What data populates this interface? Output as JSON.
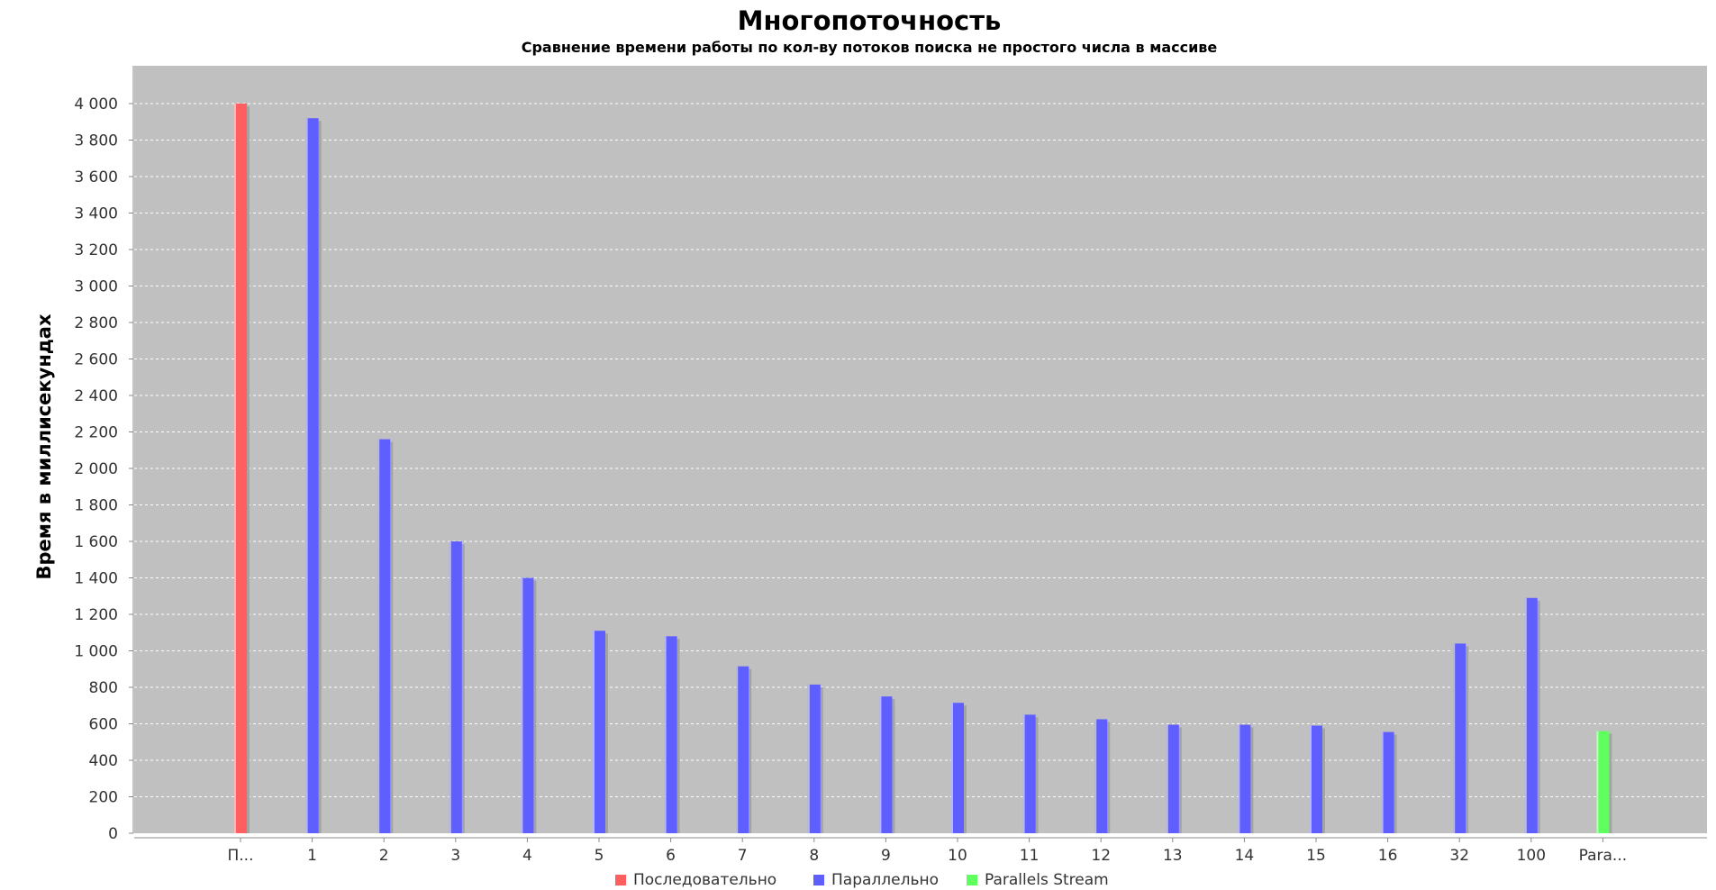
{
  "chart_data": {
    "type": "bar",
    "title": "Многопоточность",
    "subtitle": "Сравнение времени работы по кол-ву потоков поиска не простого числа в массиве",
    "xlabel": "",
    "ylabel": "Время в миллисекундах",
    "ylim": [
      0,
      4200
    ],
    "y_ticks": [
      {
        "value": 0,
        "label": "0"
      },
      {
        "value": 200,
        "label": "200"
      },
      {
        "value": 400,
        "label": "400"
      },
      {
        "value": 600,
        "label": "600"
      },
      {
        "value": 800,
        "label": "800"
      },
      {
        "value": 1000,
        "label": "1 000"
      },
      {
        "value": 1200,
        "label": "1 200"
      },
      {
        "value": 1400,
        "label": "1 400"
      },
      {
        "value": 1600,
        "label": "1 600"
      },
      {
        "value": 1800,
        "label": "1 800"
      },
      {
        "value": 2000,
        "label": "2 000"
      },
      {
        "value": 2200,
        "label": "2 200"
      },
      {
        "value": 2400,
        "label": "2 400"
      },
      {
        "value": 2600,
        "label": "2 600"
      },
      {
        "value": 2800,
        "label": "2 800"
      },
      {
        "value": 3000,
        "label": "3 000"
      },
      {
        "value": 3200,
        "label": "3 200"
      },
      {
        "value": 3400,
        "label": "3 400"
      },
      {
        "value": 3600,
        "label": "3 600"
      },
      {
        "value": 3800,
        "label": "3 800"
      },
      {
        "value": 4000,
        "label": "4 000"
      }
    ],
    "grid": true,
    "legend_position": "bottom",
    "categories": [
      "П...",
      "1",
      "2",
      "3",
      "4",
      "5",
      "6",
      "7",
      "8",
      "9",
      "10",
      "11",
      "12",
      "13",
      "14",
      "15",
      "16",
      "32",
      "100",
      "Para..."
    ],
    "series": [
      {
        "name": "Последовательно",
        "color": "#ff5f5f",
        "values": [
          4000,
          null,
          null,
          null,
          null,
          null,
          null,
          null,
          null,
          null,
          null,
          null,
          null,
          null,
          null,
          null,
          null,
          null,
          null,
          null
        ]
      },
      {
        "name": "Параллельно",
        "color": "#5f5fff",
        "values": [
          null,
          3920,
          2160,
          1600,
          1400,
          1110,
          1080,
          915,
          815,
          750,
          715,
          650,
          625,
          595,
          595,
          590,
          555,
          1040,
          1290,
          null
        ]
      },
      {
        "name": "Parallels Stream",
        "color": "#5fff5f",
        "values": [
          null,
          null,
          null,
          null,
          null,
          null,
          null,
          null,
          null,
          null,
          null,
          null,
          null,
          null,
          null,
          null,
          null,
          null,
          null,
          560
        ]
      }
    ],
    "colors": {
      "plot_background": "#c0c0c0",
      "gridline": "#ffffff",
      "axis": "#888888"
    }
  }
}
